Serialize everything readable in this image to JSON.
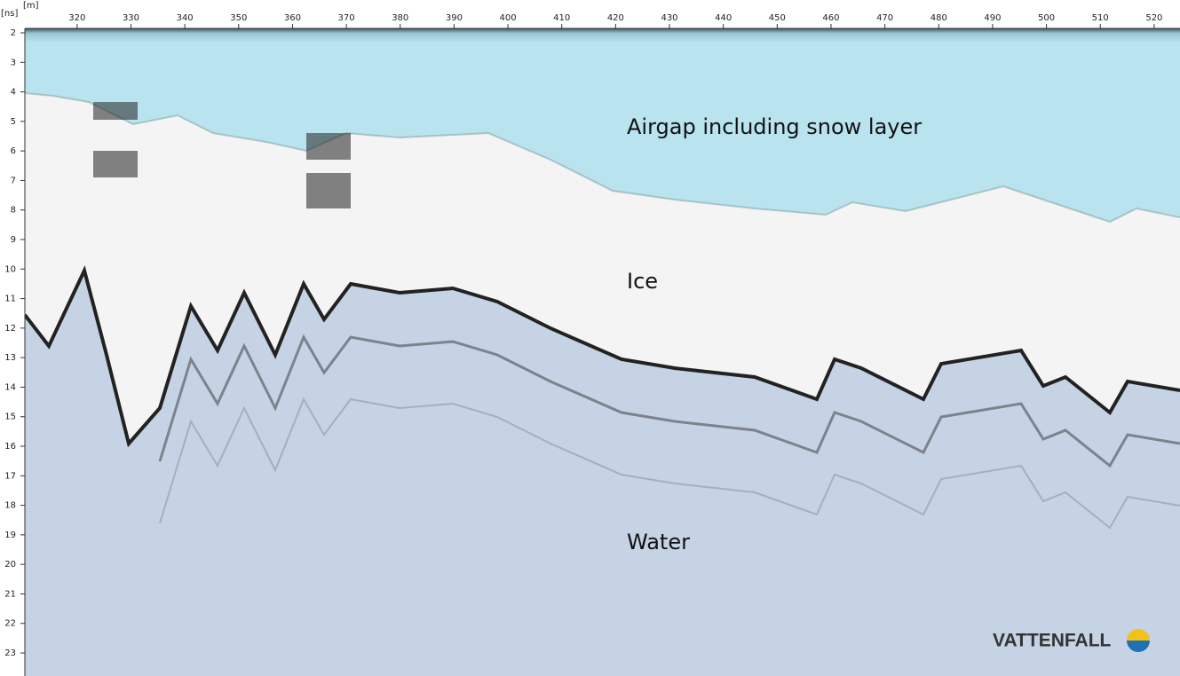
{
  "chart_data": {
    "type": "radargram",
    "x_label": "[m]",
    "y_label": "[ns]",
    "xlim": [
      310.3,
      524.8
    ],
    "xticks": [
      320,
      330,
      340,
      350,
      360,
      370,
      380,
      390,
      400,
      410,
      420,
      430,
      440,
      450,
      460,
      470,
      480,
      490,
      500,
      510,
      520
    ],
    "ylim": [
      1.85,
      23.78
    ],
    "yticks": [
      2,
      3,
      4,
      5,
      6,
      7,
      8,
      9,
      10,
      11,
      12,
      13,
      14,
      15,
      16,
      17,
      18,
      19,
      20,
      21,
      22,
      23
    ],
    "y_inverted": true,
    "annotations": [
      "Airgap including snow layer",
      "Ice",
      "Water"
    ]
  },
  "logo": "VATTENFALL"
}
